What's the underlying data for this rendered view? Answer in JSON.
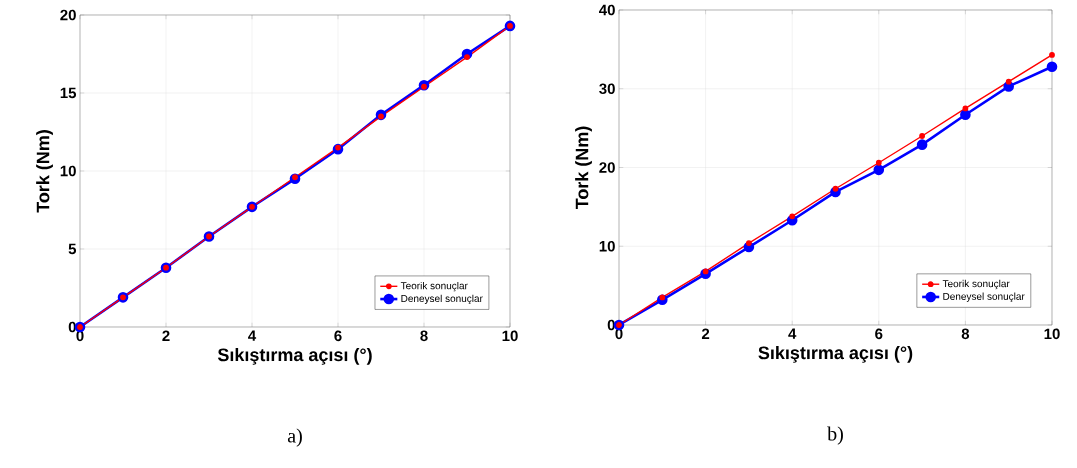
{
  "chart_data": [
    {
      "type": "line",
      "xlabel": "Sıkıştırma açısı (°)",
      "ylabel": "Tork (Nm)",
      "x": [
        0,
        1,
        2,
        3,
        4,
        5,
        6,
        7,
        8,
        9,
        10
      ],
      "xlim": [
        0,
        10
      ],
      "xticks": [
        0,
        2,
        4,
        6,
        8,
        10
      ],
      "ylim": [
        0,
        20
      ],
      "yticks": [
        0,
        5,
        10,
        15,
        20
      ],
      "grid": true,
      "legend": "bottom right",
      "marker": "circle",
      "line_style": "solid",
      "annotations": [
        "a)"
      ],
      "series": [
        {
          "name": "Teorik sonuçlar",
          "color": "#ff0000",
          "values": [
            0,
            1.9,
            3.8,
            5.8,
            7.7,
            9.6,
            11.5,
            13.5,
            15.4,
            17.3,
            19.3
          ]
        },
        {
          "name": "Deneysel sonuçlar",
          "color": "#0000ff",
          "values": [
            0,
            1.9,
            3.8,
            5.8,
            7.7,
            9.5,
            11.4,
            13.6,
            15.5,
            17.5,
            19.3
          ]
        }
      ]
    },
    {
      "type": "line",
      "xlabel": "Sıkıştırma açısı (°)",
      "ylabel": "Tork (Nm)",
      "x": [
        0,
        1,
        2,
        3,
        4,
        5,
        6,
        7,
        8,
        9,
        10
      ],
      "xlim": [
        0,
        10
      ],
      "xticks": [
        0,
        2,
        4,
        6,
        8,
        10
      ],
      "ylim": [
        0,
        40
      ],
      "yticks": [
        0,
        10,
        20,
        30,
        40
      ],
      "grid": true,
      "legend": "bottom right",
      "marker": "circle",
      "line_style": "solid",
      "annotations": [
        "b)"
      ],
      "series": [
        {
          "name": "Teorik sonuçlar",
          "color": "#ff0000",
          "values": [
            0,
            3.5,
            6.8,
            10.4,
            13.8,
            17.3,
            20.6,
            24.0,
            27.5,
            30.9,
            34.3
          ]
        },
        {
          "name": "Deneysel sonuçlar",
          "color": "#0000ff",
          "values": [
            0,
            3.2,
            6.5,
            9.9,
            13.3,
            16.9,
            19.7,
            22.9,
            26.7,
            30.3,
            32.8
          ]
        }
      ]
    }
  ]
}
